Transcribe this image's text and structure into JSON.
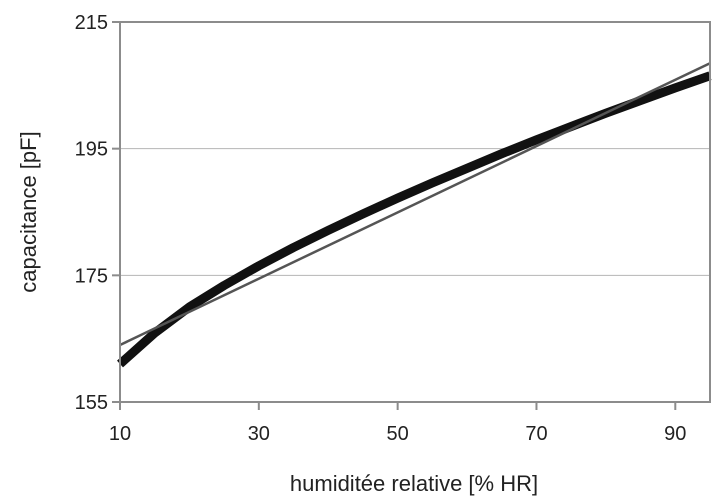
{
  "chart_data": {
    "type": "line",
    "title": "",
    "xlabel": "humiditée relative [% HR]",
    "ylabel": "capacitance [pF]",
    "xlim": [
      10,
      95
    ],
    "ylim": [
      155,
      215
    ],
    "x_ticks": [
      "10",
      "30",
      "50",
      "70",
      "90"
    ],
    "y_ticks": [
      "215",
      "195",
      "175",
      "155"
    ],
    "grid": "horizontal",
    "legend": "none",
    "colors": {
      "measured": "#111111",
      "linear_fit": "#555555",
      "grid": "#b5b5b5",
      "frame": "#8c8c8c"
    },
    "series": [
      {
        "role": "measured",
        "x": [
          10,
          15,
          20,
          25,
          30,
          35,
          40,
          45,
          50,
          55,
          60,
          65,
          70,
          75,
          80,
          85,
          90,
          95
        ],
        "y": [
          161.0,
          165.9,
          170.0,
          173.4,
          176.5,
          179.4,
          182.1,
          184.7,
          187.2,
          189.6,
          191.9,
          194.2,
          196.4,
          198.5,
          200.6,
          202.6,
          204.6,
          206.5
        ]
      },
      {
        "role": "linear_fit",
        "x": [
          10,
          95
        ],
        "y": [
          164.0,
          208.5
        ]
      }
    ]
  }
}
